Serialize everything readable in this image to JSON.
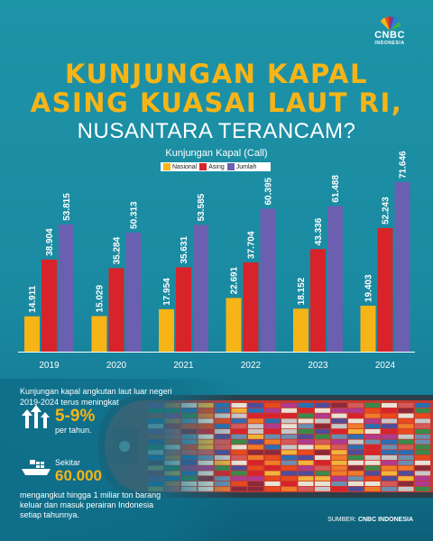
{
  "logo": {
    "brand": "CNBC",
    "sub": "INDONESIA"
  },
  "title": {
    "line1": "KUNJUNGAN KAPAL",
    "line2": "ASING KUASAI LAUT RI,",
    "line3": "NUSANTARA TERANCAM?"
  },
  "colors": {
    "nasional": "#f7b417",
    "asing": "#d8232a",
    "jumlah": "#6b5fb0",
    "accent": "#f7b417",
    "background": "#1a8aa1"
  },
  "chart_data": {
    "type": "bar",
    "title": "Kunjungan Kapal (Call)",
    "categories": [
      "2019",
      "2020",
      "2021",
      "2022",
      "2023",
      "2024"
    ],
    "series": [
      {
        "name": "Nasional",
        "values": [
          14911,
          15029,
          17954,
          22691,
          18152,
          19403
        ],
        "labels": [
          "14.911",
          "15.029",
          "17.954",
          "22.691",
          "18.152",
          "19.403"
        ]
      },
      {
        "name": "Asing",
        "values": [
          38904,
          35284,
          35631,
          37704,
          43336,
          52243
        ],
        "labels": [
          "38.904",
          "35.284",
          "35.631",
          "37.704",
          "43.336",
          "52.243"
        ]
      },
      {
        "name": "Jumlah",
        "values": [
          53815,
          50313,
          53585,
          60395,
          61488,
          71646
        ],
        "labels": [
          "53.815",
          "50.313",
          "53.585",
          "60.395",
          "61.488",
          "71.646"
        ]
      }
    ],
    "ylim": [
      0,
      80000
    ],
    "legend": "top-center"
  },
  "info": {
    "desc1": "Kunjungan kapal angkutan laut luar negeri 2019-2024 terus meningkat",
    "pct": "5-9%",
    "per": "per tahun.",
    "sekitar": "Sekitar",
    "num": "60.000",
    "desc2": "mengangkut hingga 1 miliar ton barang keluar dan masuk perairan Indonesia setiap tahunnya."
  },
  "source": {
    "label": "SUMBER:",
    "name": "CNBC INDONESIA"
  }
}
